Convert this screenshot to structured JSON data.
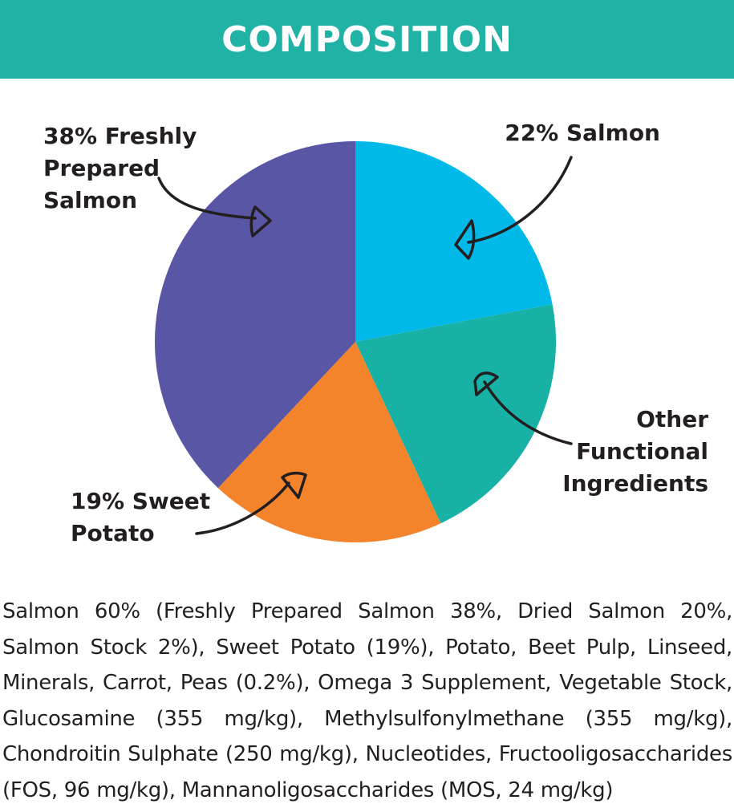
{
  "header": {
    "title": "COMPOSITION"
  },
  "colors": {
    "header_bg": "#20b2a4",
    "freshly_prepared_salmon": "#5856a5",
    "salmon": "#00b9e8",
    "other_functional_ingredients": "#17b1a6",
    "sweet_potato": "#f3842b"
  },
  "chart_data": {
    "type": "pie",
    "title": "COMPOSITION",
    "slices": [
      {
        "label": "22% Salmon",
        "value": 22,
        "color": "#00b9e8"
      },
      {
        "label": "Other\nFunctional\nIngredients",
        "value": 21,
        "color": "#17b1a6"
      },
      {
        "label": "19% Sweet\nPotato",
        "value": 19,
        "color": "#f3842b"
      },
      {
        "label": "38% Freshly\nPrepared\nSalmon",
        "value": 38,
        "color": "#5856a5"
      }
    ]
  },
  "ingredients_text": "Salmon 60% (Freshly Prepared Salmon 38%, Dried Salmon 20%, Salmon Stock 2%), Sweet Potato (19%), Potato, Beet Pulp, Linseed, Minerals, Carrot, Peas (0.2%), Omega 3 Supplement, Vegetable Stock, Glucosamine (355 mg/kg), Methylsulfonylmethane (355 mg/kg), Chondroitin Sulphate (250 mg/kg), Nucleotides, Fructooligosaccharides (FOS, 96 mg/kg), Mannanoligosaccharides (MOS, 24 mg/kg)"
}
